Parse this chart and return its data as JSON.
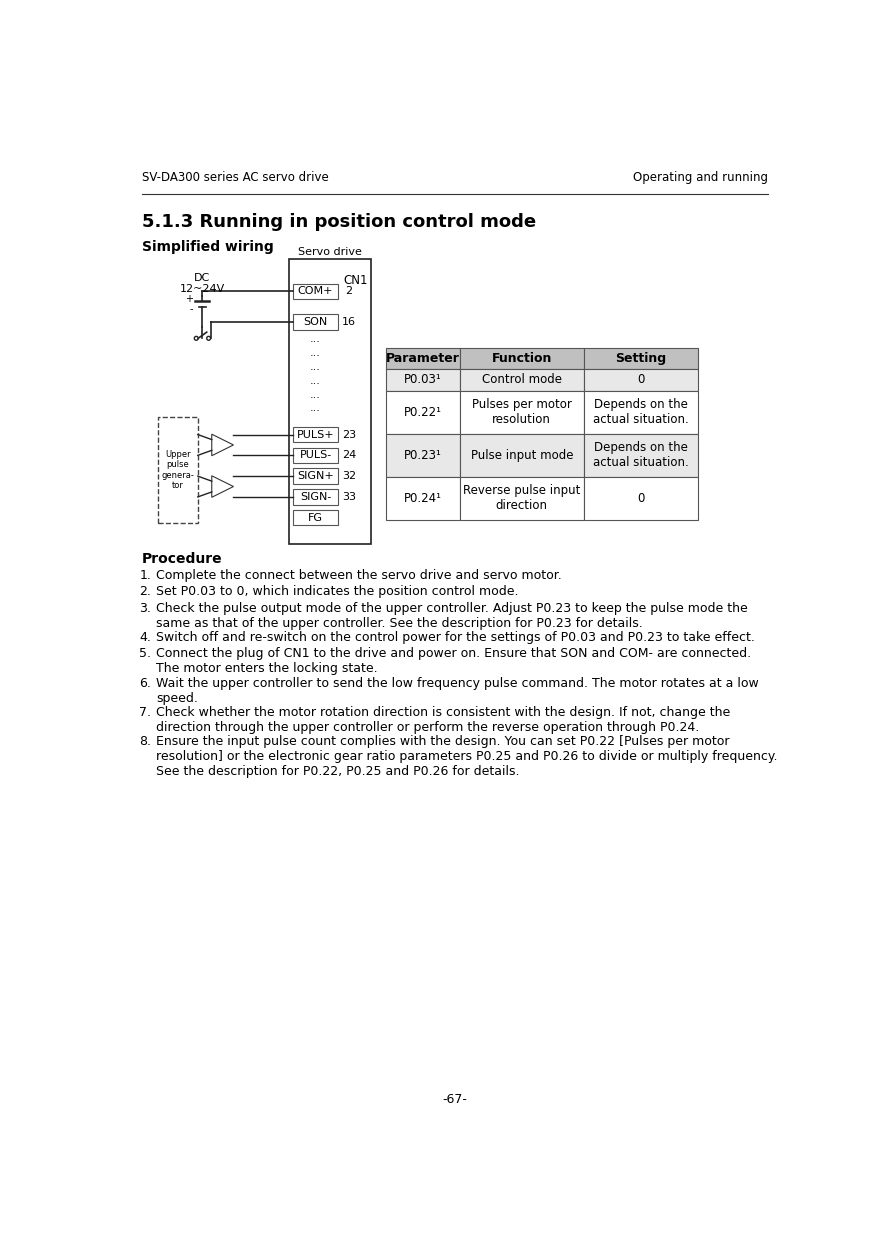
{
  "header_left": "SV-DA300 series AC servo drive",
  "header_right": "Operating and running",
  "section_title": "5.1.3 Running in position control mode",
  "simplified_wiring_label": "Simplified wiring",
  "dc_label": "DC\n12~24V",
  "servo_drive_label": "Servo drive",
  "cn1_label": "CN1",
  "com_plus_label": "COM+",
  "com_plus_pin": "2",
  "son_label": "SON",
  "son_pin": "16",
  "upper_pulse_label": "Upper\npulse\ngenera-\ntor",
  "puls_plus_label": "PULS+",
  "puls_plus_pin": "23",
  "puls_minus_label": "PULS-",
  "puls_minus_pin": "24",
  "sign_plus_label": "SIGN+",
  "sign_plus_pin": "32",
  "sign_minus_label": "SIGN-",
  "sign_minus_pin": "33",
  "fg_label": "FG",
  "table_headers": [
    "Parameter",
    "Function",
    "Setting"
  ],
  "table_rows": [
    [
      "P0.03¹",
      "Control mode",
      "0"
    ],
    [
      "P0.22¹",
      "Pulses per motor\nresolution",
      "Depends on the\nactual situation."
    ],
    [
      "P0.23¹",
      "Pulse input mode",
      "Depends on the\nactual situation."
    ],
    [
      "P0.24¹",
      "Reverse pulse input\ndirection",
      "0"
    ]
  ],
  "procedure_title": "Procedure",
  "procedure_items": [
    "Complete the connect between the servo drive and servo motor.",
    "Set P0.03 to 0, which indicates the position control mode.",
    "Check the pulse output mode of the upper controller. Adjust P0.23 to keep the pulse mode the\nsame as that of the upper controller. See the description for P0.23 for details.",
    "Switch off and re-switch on the control power for the settings of P0.03 and P0.23 to take effect.",
    "Connect the plug of CN1 to the drive and power on. Ensure that SON and COM- are connected.\nThe motor enters the locking state.",
    "Wait the upper controller to send the low frequency pulse command. The motor rotates at a low\nspeed.",
    "Check whether the motor rotation direction is consistent with the design. If not, change the\ndirection through the upper controller or perform the reverse operation through P0.24.",
    "Ensure the input pulse count complies with the design. You can set P0.22 [Pulses per motor\nresolution] or the electronic gear ratio parameters P0.25 and P0.26 to divide or multiply frequency.\nSee the description for P0.22, P0.25 and P0.26 for details."
  ],
  "page_number": "-67-",
  "bg_color": "#ffffff",
  "text_color": "#000000",
  "table_header_bg": "#c0c0c0",
  "table_row_bg_alt": "#e8e8e8",
  "table_border_color": "#555555"
}
